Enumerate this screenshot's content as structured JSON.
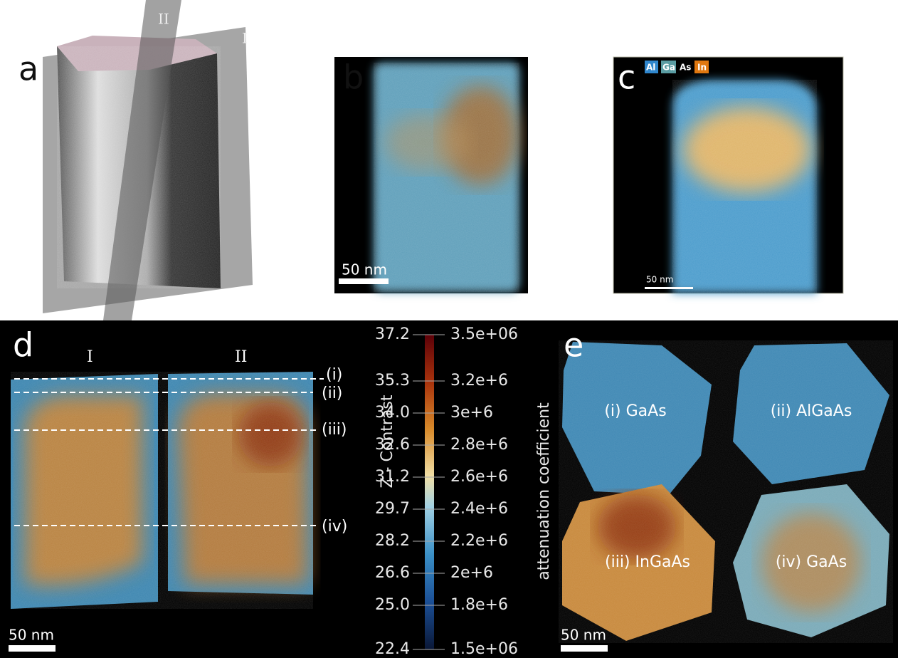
{
  "panels": {
    "a": {
      "label": "a",
      "planes": [
        "I",
        "II"
      ]
    },
    "b": {
      "label": "b",
      "scale_bar": "50 nm"
    },
    "c": {
      "label": "c",
      "legend": [
        "Al",
        "Ga",
        "As",
        "In"
      ],
      "scale_bar": "50 nm"
    },
    "d": {
      "label": "d",
      "slices": [
        "I",
        "II"
      ],
      "cuts": [
        "(i)",
        "(ii)",
        "(iii)",
        "(iv)"
      ],
      "scale_bar": "50 nm"
    },
    "e": {
      "label": "e",
      "sections": [
        "(i) GaAs",
        "(ii) AlGaAs",
        "(iii) InGaAs",
        "(iv) GaAs"
      ],
      "scale_bar": "50 nm"
    }
  },
  "colorbar": {
    "left_title": "Z - Contrast",
    "right_title": "attenuation coefficient",
    "left_ticks": [
      "37.2",
      "35.3",
      "34.0",
      "32.6",
      "31.2",
      "29.7",
      "28.2",
      "26.6",
      "25.0",
      "22.4"
    ],
    "right_ticks": [
      "3.5e+06",
      "3.2e+6",
      "3e+6",
      "2.8e+6",
      "2.6e+6",
      "2.4e+6",
      "2.2e+6",
      "2e+6",
      "1.8e+6",
      "1.5e+06"
    ]
  }
}
